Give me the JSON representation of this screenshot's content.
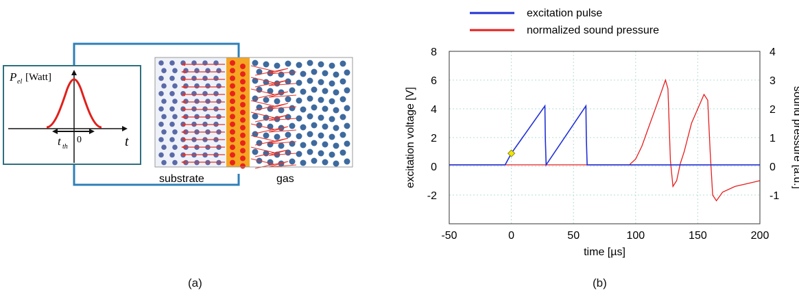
{
  "panel_a": {
    "axis": {
      "y_symbol": "P",
      "y_subscript": "el",
      "y_unit": "[Watt]",
      "x_symbol": "t",
      "tick_symbol": "t",
      "tick_subscript": "th",
      "tick_zero": "0"
    },
    "labels": {
      "substrate": "substrate",
      "gas": "gas"
    },
    "colors": {
      "wire": "#2e7fb8",
      "pulse": "#e0201b",
      "heater": "#f5a623",
      "heater_dot": "#e8231b",
      "substrate_dot": "#5a6aa8",
      "gas_dot": "#3e6a9e",
      "arrow": "#e5332a"
    },
    "caption": "(a)"
  },
  "panel_b": {
    "legend": [
      {
        "name": "excitation pulse",
        "color": "#1f2fd6"
      },
      {
        "name": "normalized sound pressure",
        "color": "#e81c1c"
      }
    ],
    "caption": "(b)"
  },
  "chart_data": {
    "type": "line",
    "xlabel": "time [µs]",
    "ylabel": "excitation voltage [V]",
    "ylabel_right": "sound pressure [a.u.]",
    "xlim": [
      -50,
      200
    ],
    "ylim": [
      -4,
      8
    ],
    "ylim_right": [
      -2,
      4
    ],
    "xticks": [
      "-50",
      "0",
      "50",
      "100",
      "150",
      "200"
    ],
    "yticks": [
      "-2",
      "0",
      "2",
      "4",
      "6",
      "8"
    ],
    "yticks_right": [
      "-1",
      "0",
      "1",
      "2",
      "3",
      "4"
    ],
    "grid": true,
    "legend_position": "top",
    "series": [
      {
        "name": "excitation pulse",
        "axis": "left",
        "color": "#1f2fd6",
        "x": [
          -50,
          -5,
          0,
          27,
          27.3,
          28,
          60,
          60.3,
          61,
          200
        ],
        "y": [
          0.1,
          0.1,
          0.9,
          4.2,
          2.0,
          0.1,
          4.2,
          2.0,
          0.1,
          0.1
        ]
      },
      {
        "name": "normalized sound pressure",
        "axis": "right",
        "color": "#e81c1c",
        "x": [
          -50,
          95,
          100,
          105,
          110,
          115,
          120,
          124,
          126,
          128,
          130,
          133,
          136,
          139,
          142,
          145,
          150,
          155,
          158,
          160,
          162,
          165,
          170,
          180,
          190,
          200
        ],
        "y": [
          0.05,
          0.05,
          0.25,
          0.7,
          1.3,
          1.9,
          2.5,
          3.0,
          2.7,
          0.2,
          -0.7,
          -0.5,
          0.1,
          0.5,
          1.0,
          1.5,
          2.0,
          2.5,
          2.3,
          0.5,
          -1.0,
          -1.2,
          -0.9,
          -0.7,
          -0.6,
          -0.5
        ]
      }
    ]
  }
}
